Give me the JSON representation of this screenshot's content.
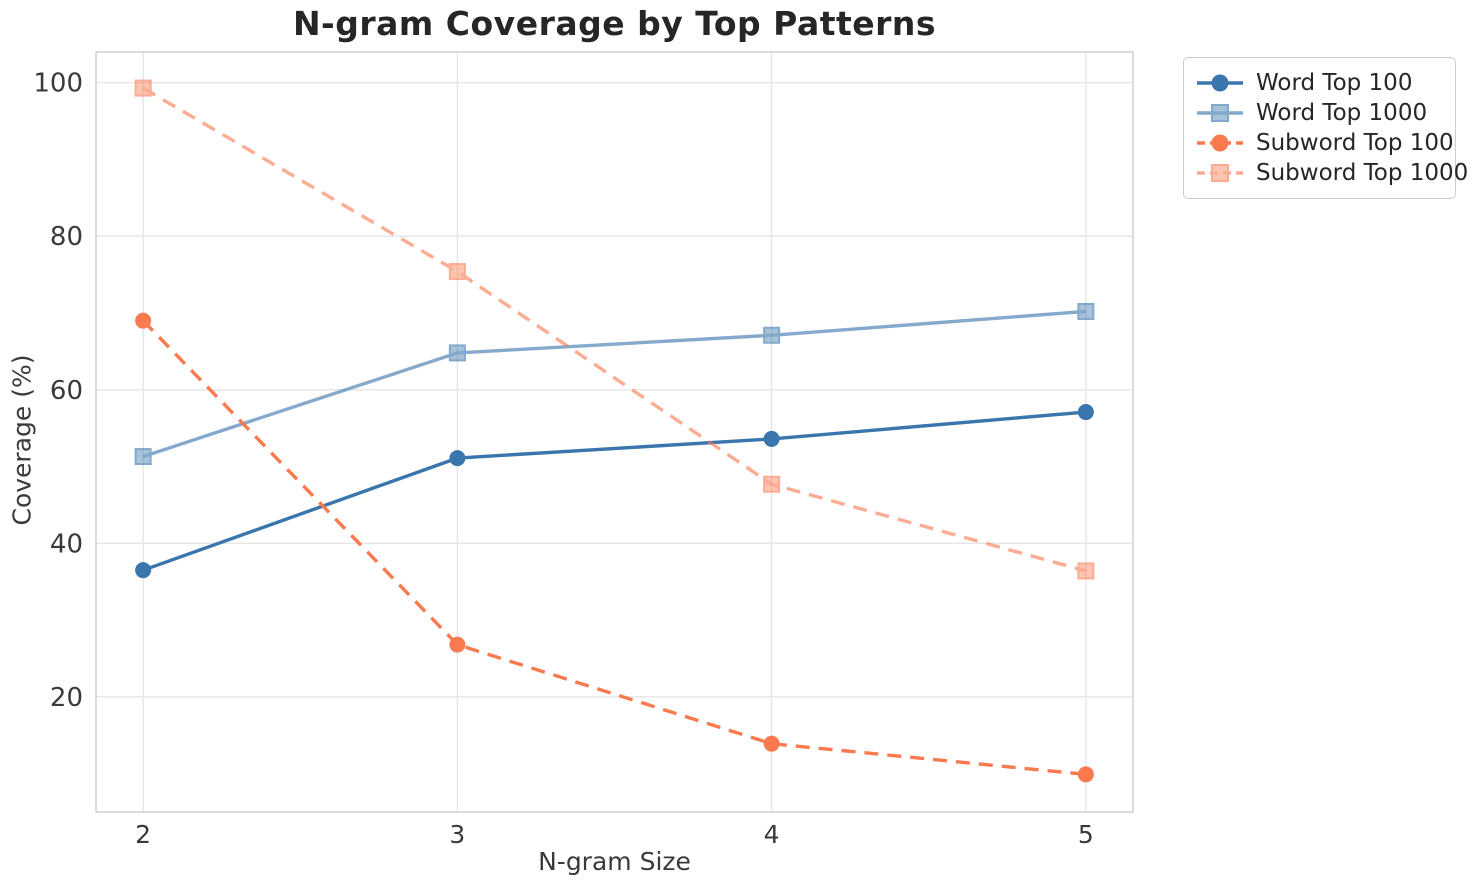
{
  "figure": {
    "background_color": "#ffffff",
    "grid_color": "#e6e6e6",
    "spine_color": "#d0d0d0",
    "text_color": "#3a3a3a",
    "title_color": "#262626"
  },
  "chart_data": {
    "type": "line",
    "title": "N-gram Coverage by Top Patterns",
    "xlabel": "N-gram Size",
    "ylabel": "Coverage (%)",
    "x": [
      2,
      3,
      4,
      5
    ],
    "x_ticks": [
      "2",
      "3",
      "4",
      "5"
    ],
    "y_ticks": [
      "20",
      "40",
      "60",
      "80",
      "100"
    ],
    "y_tick_values": [
      20,
      40,
      60,
      80,
      100
    ],
    "xlim": [
      1.85,
      5.15
    ],
    "ylim": [
      5,
      104
    ],
    "grid": true,
    "legend_position": "outside-top-right",
    "series": [
      {
        "name": "Word Top 100",
        "values": [
          36.5,
          51.1,
          53.6,
          57.1
        ],
        "color": "#3a76ad",
        "marker": "circle",
        "line_style": "solid",
        "opacity": 1
      },
      {
        "name": "Word Top 1000",
        "values": [
          51.3,
          64.8,
          67.1,
          70.2
        ],
        "color": "#3a76ad",
        "marker": "square",
        "line_style": "solid",
        "opacity": 0.62
      },
      {
        "name": "Subword Top 100",
        "values": [
          69.0,
          26.8,
          13.9,
          9.9
        ],
        "color": "#fa7a50",
        "marker": "circle",
        "line_style": "dashed",
        "opacity": 1
      },
      {
        "name": "Subword Top 1000",
        "values": [
          99.3,
          75.4,
          47.7,
          36.4
        ],
        "color": "#fa7a50",
        "marker": "square",
        "line_style": "dashed",
        "opacity": 0.62
      }
    ]
  }
}
